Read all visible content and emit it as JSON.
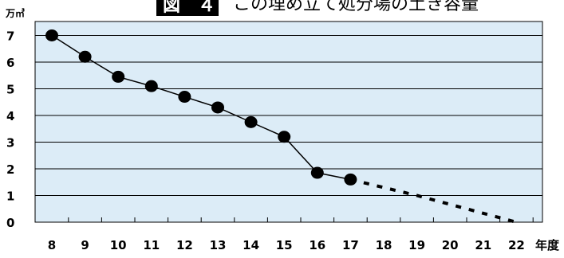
{
  "chart_data": {
    "type": "line",
    "title": "この埋め立て処分場の土き容量",
    "badge": "図　４",
    "y_unit": "万㎥",
    "x_unit": "年度",
    "x": [
      8,
      9,
      10,
      11,
      12,
      13,
      14,
      15,
      16,
      17,
      18,
      19,
      20,
      21,
      22
    ],
    "y_ticks": [
      0,
      1,
      2,
      3,
      4,
      5,
      6,
      7
    ],
    "ylim": [
      0,
      7.5
    ],
    "grid": true,
    "series": [
      {
        "style": "solid-markers",
        "x": [
          8,
          9,
          10,
          11,
          12,
          13,
          14,
          15,
          16,
          17
        ],
        "y": [
          7.0,
          6.2,
          5.45,
          5.1,
          4.7,
          4.3,
          3.75,
          3.2,
          1.85,
          1.6
        ]
      },
      {
        "style": "dotted-projection",
        "x": [
          17,
          19,
          22
        ],
        "y": [
          1.6,
          1.0,
          0.0
        ]
      }
    ],
    "colors": {
      "plot_background": "#dcecf7",
      "line": "#000000",
      "marker": "#000000",
      "badge_background": "#000000"
    }
  }
}
